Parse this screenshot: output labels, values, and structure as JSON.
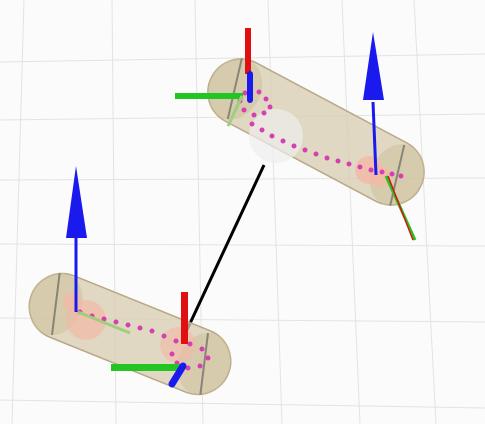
{
  "viewport": {
    "label": "3D viewer",
    "background": "#fbfbfb",
    "grid_color": "#e2e2e2"
  },
  "scene": {
    "bodies": [
      {
        "name": "capsule-upper",
        "color": "#d8ccb0",
        "edge": "#b9a985"
      },
      {
        "name": "capsule-lower",
        "color": "#d8ccb0",
        "edge": "#b9a985"
      }
    ],
    "link_color": "#000000",
    "axes": {
      "x": "#e01010",
      "y": "#22c522",
      "z": "#1a1aee",
      "aux": "#9fcf7a"
    },
    "trace_color": "#d63fb0",
    "joint_color": "#f2b9a6"
  }
}
